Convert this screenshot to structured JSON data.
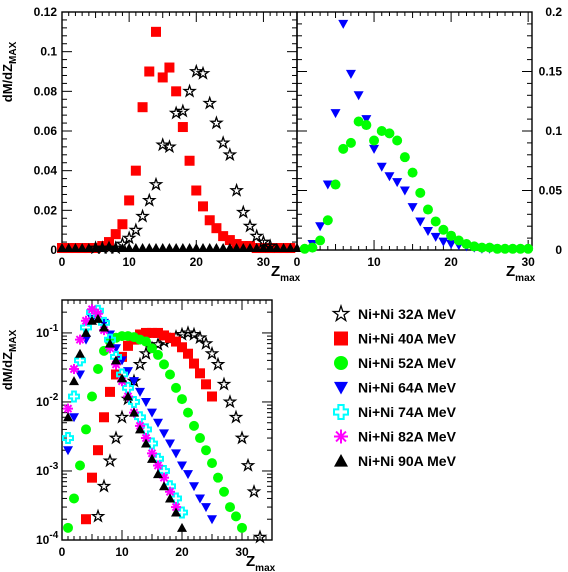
{
  "chart_data": [
    {
      "type": "scatter",
      "panel": "top-left",
      "xlim": [
        0,
        35
      ],
      "ylim": [
        0,
        0.12
      ],
      "yscale": "linear",
      "xticks": [
        0,
        10,
        20,
        30
      ],
      "yticks": [
        0,
        0.02,
        0.04,
        0.06,
        0.08,
        0.1,
        0.12
      ],
      "xtick_labels": [
        "0",
        "10",
        "20",
        "30"
      ],
      "ytick_labels": [
        "0",
        "0.02",
        "0.04",
        "0.06",
        "0.08",
        "0.1",
        "0.12"
      ],
      "ytick_side": "left",
      "xlabel": "Z",
      "xlabel_sub": "max",
      "ylabel": "dM/dZ",
      "ylabel_sub": "MAX",
      "series": [
        {
          "name": "Ni+Ni  40A MeV",
          "marker": "square",
          "color": "#ff0000",
          "x": [
            0,
            1,
            2,
            3,
            4,
            5,
            6,
            7,
            8,
            9,
            10,
            11,
            12,
            13,
            14,
            15,
            16,
            17,
            18,
            19,
            20,
            21,
            22,
            23,
            24,
            25,
            26,
            27,
            28,
            29,
            30,
            31,
            32,
            33,
            34
          ],
          "y": [
            0.001,
            0.001,
            0.001,
            0.001,
            0.001,
            0.001,
            0.002,
            0.004,
            0.008,
            0.013,
            0.025,
            0.04,
            0.072,
            0.09,
            0.11,
            0.087,
            0.092,
            0.08,
            0.062,
            0.045,
            0.03,
            0.022,
            0.015,
            0.011,
            0.007,
            0.005,
            0.003,
            0.002,
            0.002,
            0.001,
            0.001,
            0.001,
            0.001,
            0.001,
            0.001
          ]
        },
        {
          "name": "Ni+Ni  32A MeV",
          "marker": "star",
          "color": "#000000",
          "x": [
            5,
            6,
            7,
            8,
            9,
            10,
            11,
            12,
            13,
            14,
            15,
            16,
            17,
            18,
            19,
            20,
            21,
            22,
            23,
            24,
            25,
            26,
            27,
            28,
            29,
            30,
            31
          ],
          "y": [
            0.001,
            0.001,
            0.001,
            0.001,
            0.003,
            0.006,
            0.01,
            0.017,
            0.025,
            0.033,
            0.053,
            0.052,
            0.069,
            0.07,
            0.08,
            0.09,
            0.089,
            0.074,
            0.064,
            0.054,
            0.048,
            0.03,
            0.019,
            0.012,
            0.007,
            0.004,
            0.002
          ]
        },
        {
          "name": "Ni+Ni  90A MeV",
          "marker": "triangle-up",
          "color": "#000000",
          "x": [
            0,
            1,
            2,
            3,
            4,
            5,
            6,
            7,
            8,
            9,
            10,
            11,
            12,
            13,
            14,
            15,
            16,
            17,
            18,
            19,
            20,
            21,
            22,
            23,
            24,
            25,
            26,
            27,
            28,
            29,
            30,
            31,
            32,
            33,
            34,
            35
          ],
          "y": [
            0.001,
            0.001,
            0.001,
            0.001,
            0.001,
            0.001,
            0.001,
            0.002,
            0.001,
            0.001,
            0.001,
            0.001,
            0.001,
            0.001,
            0.001,
            0.001,
            0.001,
            0.001,
            0.001,
            0.001,
            0.001,
            0.001,
            0.001,
            0.001,
            0.001,
            0.001,
            0.001,
            0.001,
            0.001,
            0.001,
            0.001,
            0.001,
            0.001,
            0.001,
            0.001,
            0.001
          ]
        }
      ]
    },
    {
      "type": "scatter",
      "panel": "top-right",
      "xlim": [
        0,
        30.5
      ],
      "ylim": [
        0,
        0.2
      ],
      "yscale": "linear",
      "xticks": [
        0,
        10,
        20,
        30
      ],
      "yticks": [
        0,
        0.05,
        0.1,
        0.15,
        0.2
      ],
      "xtick_labels": [
        "0",
        "10",
        "20",
        "30"
      ],
      "ytick_labels": [
        "0",
        "0.05",
        "0.1",
        "0.15",
        "0.2"
      ],
      "ytick_side": "right",
      "xlabel": "Z",
      "xlabel_sub": "max",
      "series": [
        {
          "name": "Ni+Ni  64A MeV",
          "marker": "triangle-down",
          "color": "#0000ff",
          "x": [
            2,
            3,
            4,
            5,
            6,
            7,
            8,
            9,
            10,
            11,
            12,
            13,
            14,
            15,
            16,
            17,
            18,
            19,
            20,
            21,
            22,
            23,
            24,
            25
          ],
          "y": [
            0.005,
            0.02,
            0.055,
            0.115,
            0.19,
            0.148,
            0.13,
            0.11,
            0.085,
            0.07,
            0.062,
            0.057,
            0.05,
            0.036,
            0.024,
            0.016,
            0.011,
            0.007,
            0.005,
            0.004,
            0.003,
            0.002,
            0.001,
            0.001
          ]
        },
        {
          "name": "Ni+Ni  52A MeV",
          "marker": "circle",
          "color": "#00ff00",
          "x": [
            1,
            2,
            3,
            4,
            5,
            6,
            7,
            8,
            9,
            10,
            11,
            12,
            13,
            14,
            15,
            16,
            17,
            18,
            19,
            20,
            21,
            22,
            23,
            24,
            25,
            26,
            27,
            28,
            29,
            30
          ],
          "y": [
            0.001,
            0.002,
            0.008,
            0.025,
            0.055,
            0.085,
            0.09,
            0.108,
            0.105,
            0.092,
            0.1,
            0.098,
            0.092,
            0.078,
            0.065,
            0.048,
            0.034,
            0.024,
            0.017,
            0.012,
            0.008,
            0.005,
            0.003,
            0.002,
            0.002,
            0.001,
            0.001,
            0.001,
            0.001,
            0.001
          ]
        }
      ]
    },
    {
      "type": "scatter",
      "panel": "bottom",
      "xlim": [
        0,
        35
      ],
      "ylim": [
        0.0001,
        0.3
      ],
      "yscale": "log",
      "xticks": [
        0,
        10,
        20,
        30
      ],
      "yticks": [
        0.0001,
        0.001,
        0.01,
        0.1
      ],
      "xtick_labels": [
        "0",
        "10",
        "20",
        "30"
      ],
      "ytick_labels": [
        "10-4",
        "10-3",
        "10-2",
        "10-1"
      ],
      "ytick_side": "left",
      "xlabel": "Z",
      "xlabel_sub": "max",
      "ylabel": "dM/dZ",
      "ylabel_sub": "MAX",
      "series": [
        {
          "name": "Ni+Ni  32A MeV",
          "marker": "star",
          "color": "#000000",
          "x": [
            6,
            7,
            8,
            9,
            10,
            11,
            12,
            13,
            14,
            15,
            16,
            17,
            18,
            19,
            20,
            21,
            22,
            23,
            24,
            25,
            26,
            27,
            28,
            29,
            30,
            31,
            32,
            33
          ],
          "y": [
            0.00022,
            0.0006,
            0.0014,
            0.003,
            0.006,
            0.011,
            0.02,
            0.035,
            0.05,
            0.06,
            0.068,
            0.075,
            0.08,
            0.088,
            0.095,
            0.1,
            0.095,
            0.085,
            0.07,
            0.05,
            0.035,
            0.018,
            0.01,
            0.006,
            0.003,
            0.0012,
            0.0005,
            0.00011
          ]
        },
        {
          "name": "Ni+Ni  40A MeV",
          "marker": "square",
          "color": "#ff0000",
          "x": [
            4,
            5,
            6,
            7,
            8,
            9,
            10,
            11,
            12,
            13,
            14,
            15,
            16,
            17,
            18,
            19,
            20,
            21,
            22,
            23,
            24,
            25
          ],
          "y": [
            0.0002,
            0.0008,
            0.002,
            0.006,
            0.014,
            0.025,
            0.045,
            0.065,
            0.08,
            0.095,
            0.1,
            0.1,
            0.1,
            0.092,
            0.085,
            0.075,
            0.062,
            0.05,
            0.036,
            0.026,
            0.018,
            0.012
          ]
        },
        {
          "name": "Ni+Ni  52A MeV",
          "marker": "circle",
          "color": "#00ff00",
          "x": [
            1,
            2,
            3,
            4,
            5,
            6,
            7,
            8,
            9,
            10,
            11,
            12,
            13,
            14,
            15,
            16,
            17,
            18,
            19,
            20,
            21,
            22,
            23,
            24,
            25,
            26,
            27,
            28,
            29,
            30
          ],
          "y": [
            0.00015,
            0.0004,
            0.0012,
            0.004,
            0.012,
            0.03,
            0.055,
            0.075,
            0.085,
            0.09,
            0.09,
            0.087,
            0.08,
            0.075,
            0.06,
            0.048,
            0.035,
            0.025,
            0.016,
            0.011,
            0.007,
            0.0045,
            0.003,
            0.002,
            0.0013,
            0.0008,
            0.0005,
            0.0003,
            0.00022,
            0.00015
          ]
        },
        {
          "name": "Ni+Ni  64A MeV",
          "marker": "triangle-down",
          "color": "#0000ff",
          "x": [
            1,
            2,
            3,
            4,
            5,
            6,
            7,
            8,
            9,
            10,
            11,
            12,
            13,
            14,
            15,
            16,
            17,
            18,
            19,
            20,
            21,
            22,
            23,
            24,
            25
          ],
          "y": [
            0.002,
            0.006,
            0.025,
            0.08,
            0.16,
            0.18,
            0.14,
            0.095,
            0.06,
            0.04,
            0.028,
            0.02,
            0.014,
            0.01,
            0.007,
            0.005,
            0.0035,
            0.0025,
            0.0018,
            0.0012,
            0.0009,
            0.0006,
            0.0004,
            0.0003,
            0.0002
          ]
        },
        {
          "name": "Ni+Ni  74A MeV",
          "marker": "cross",
          "color": "#00ffff",
          "x": [
            1,
            2,
            3,
            4,
            5,
            6,
            7,
            8,
            9,
            10,
            11,
            12,
            13,
            14,
            15,
            16,
            17,
            18,
            19,
            20
          ],
          "y": [
            0.003,
            0.012,
            0.04,
            0.12,
            0.2,
            0.21,
            0.14,
            0.08,
            0.045,
            0.025,
            0.016,
            0.01,
            0.006,
            0.004,
            0.0025,
            0.0015,
            0.001,
            0.0006,
            0.0004,
            0.00025
          ]
        },
        {
          "name": "Ni+Ni  82A MeV",
          "marker": "asterisk",
          "color": "#ff00ff",
          "x": [
            1,
            2,
            3,
            4,
            5,
            6,
            7,
            8,
            9,
            10,
            11,
            12,
            13,
            14,
            15,
            16,
            17,
            18,
            19
          ],
          "y": [
            0.008,
            0.03,
            0.08,
            0.15,
            0.22,
            0.19,
            0.11,
            0.06,
            0.035,
            0.02,
            0.012,
            0.007,
            0.0045,
            0.003,
            0.0018,
            0.0012,
            0.0008,
            0.0005,
            0.0003
          ]
        },
        {
          "name": "Ni+Ni  90A MeV",
          "marker": "triangle-up",
          "color": "#000000",
          "x": [
            1,
            2,
            3,
            4,
            5,
            6,
            7,
            8,
            9,
            10,
            11,
            12,
            13,
            14,
            15,
            16,
            17,
            18,
            19,
            20
          ],
          "y": [
            0.006,
            0.02,
            0.05,
            0.1,
            0.15,
            0.16,
            0.12,
            0.07,
            0.04,
            0.022,
            0.012,
            0.007,
            0.004,
            0.0025,
            0.0015,
            0.0009,
            0.0006,
            0.0004,
            0.00025,
            0.00015
          ]
        }
      ]
    }
  ],
  "legend": {
    "placement": "bottom-right",
    "entries": [
      {
        "label": "Ni+Ni  32A MeV",
        "marker": "star",
        "color": "#000000"
      },
      {
        "label": "Ni+Ni  40A MeV",
        "marker": "square",
        "color": "#ff0000"
      },
      {
        "label": "Ni+Ni  52A MeV",
        "marker": "circle",
        "color": "#00ff00"
      },
      {
        "label": "Ni+Ni  64A MeV",
        "marker": "triangle-down",
        "color": "#0000ff"
      },
      {
        "label": "Ni+Ni  74A MeV",
        "marker": "cross",
        "color": "#00ffff"
      },
      {
        "label": "Ni+Ni  82A MeV",
        "marker": "asterisk",
        "color": "#ff00ff"
      },
      {
        "label": "Ni+Ni  90A MeV",
        "marker": "triangle-up",
        "color": "#000000"
      }
    ]
  }
}
